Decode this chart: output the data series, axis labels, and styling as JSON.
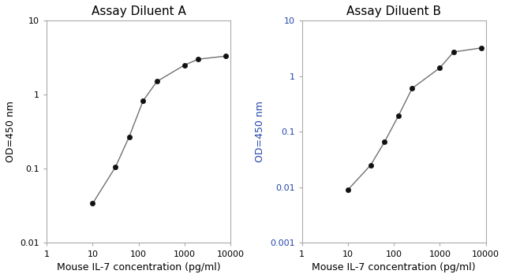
{
  "chart_A": {
    "title": "Assay Diluent A",
    "x": [
      10,
      31.25,
      62.5,
      125,
      250,
      1000,
      2000,
      8000
    ],
    "y": [
      0.034,
      0.105,
      0.27,
      0.82,
      1.5,
      2.5,
      3.0,
      3.3
    ],
    "xlim": [
      1,
      10000
    ],
    "ylim": [
      0.01,
      10
    ],
    "ylabel": "OD=450 nm",
    "xlabel": "Mouse IL-7 concentration (pg/ml)",
    "xticks": [
      1,
      10,
      100,
      1000,
      10000
    ],
    "xtick_labels": [
      "1",
      "10",
      "100",
      "1000",
      "10000"
    ],
    "yticks": [
      0.01,
      0.1,
      1,
      10
    ],
    "ytick_labels": [
      "0.01",
      "0.1",
      "1",
      "10"
    ],
    "ylabel_color": "#000000",
    "ytick_color": "#000000"
  },
  "chart_B": {
    "title": "Assay Diluent B",
    "x": [
      10,
      31.25,
      62.5,
      125,
      250,
      1000,
      2000,
      8000
    ],
    "y": [
      0.009,
      0.025,
      0.065,
      0.19,
      0.6,
      1.4,
      2.7,
      3.2
    ],
    "xlim": [
      1,
      10000
    ],
    "ylim": [
      0.001,
      10
    ],
    "ylabel": "OD=450 nm",
    "xlabel": "Mouse IL-7 concentration (pg/ml)",
    "xticks": [
      1,
      10,
      100,
      1000,
      10000
    ],
    "xtick_labels": [
      "1",
      "10",
      "100",
      "1000",
      "10000"
    ],
    "yticks": [
      0.001,
      0.01,
      0.1,
      1,
      10
    ],
    "ytick_labels": [
      "0.001",
      "0.01",
      "0.1",
      "1",
      "10"
    ],
    "ylabel_color": "#2244aa",
    "ytick_color": "#2244aa"
  },
  "line_color": "#707070",
  "marker_color": "#111111",
  "title_fontsize": 11,
  "label_fontsize": 9,
  "tick_fontsize": 8,
  "axis_color": "#aaaaaa"
}
